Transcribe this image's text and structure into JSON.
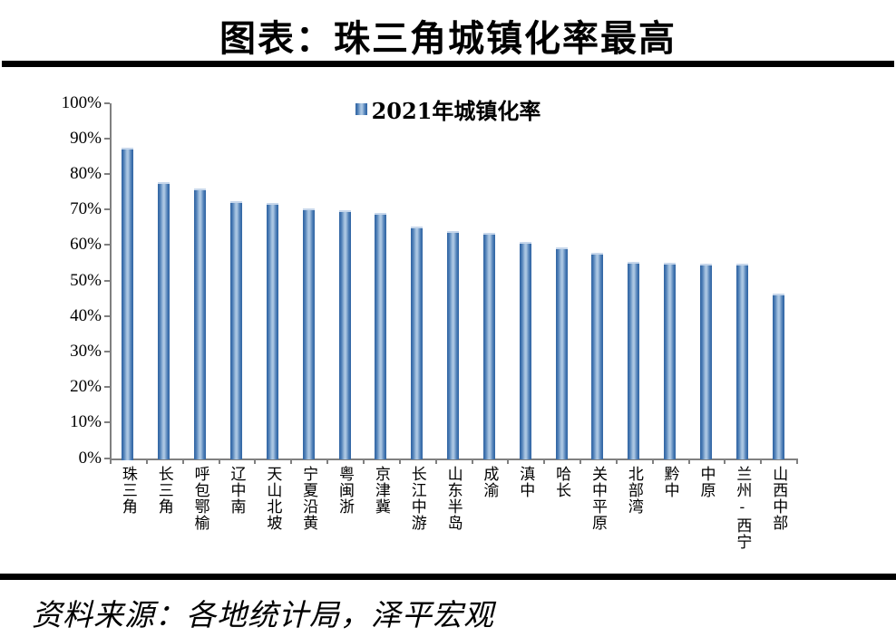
{
  "page": {
    "title": "图表：珠三角城镇化率最高",
    "source_note": "资料来源：各地统计局，泽平宏观"
  },
  "legend": {
    "label": "2021年城镇化率"
  },
  "colors": {
    "bar_edge": "#2e62a1",
    "bar_shade": "#4b7cb5",
    "bar_center": "#aac6e2",
    "axis": "#808080",
    "rule": "#000000",
    "text": "#000000"
  },
  "chart_data": {
    "type": "bar",
    "title": "图表：珠三角城镇化率最高",
    "legend_entries": [
      "2021年城镇化率"
    ],
    "legend_position": "top-center",
    "categories": [
      "珠三角",
      "长三角",
      "呼包鄂榆",
      "辽中南",
      "天山北坡",
      "宁夏沿黄",
      "粤闽浙",
      "京津冀",
      "长江中游",
      "山东半岛",
      "成渝",
      "滇中",
      "哈长",
      "关中平原",
      "北部湾",
      "黔中",
      "中原",
      "兰州-西宁",
      "山西中部"
    ],
    "values": [
      87.5,
      77.6,
      75.8,
      72.3,
      71.8,
      70.2,
      69.8,
      68.9,
      65.3,
      63.8,
      63.3,
      60.9,
      59.2,
      57.7,
      55.2,
      55.1,
      54.8,
      54.7,
      46.4
    ],
    "series_name": "2021年城镇化率",
    "xlabel": "",
    "ylabel": "",
    "ylim": [
      0,
      100
    ],
    "ytick_step": 10,
    "ytick_labels": [
      "0%",
      "10%",
      "20%",
      "30%",
      "40%",
      "50%",
      "60%",
      "70%",
      "80%",
      "90%",
      "100%"
    ],
    "grid": false
  }
}
